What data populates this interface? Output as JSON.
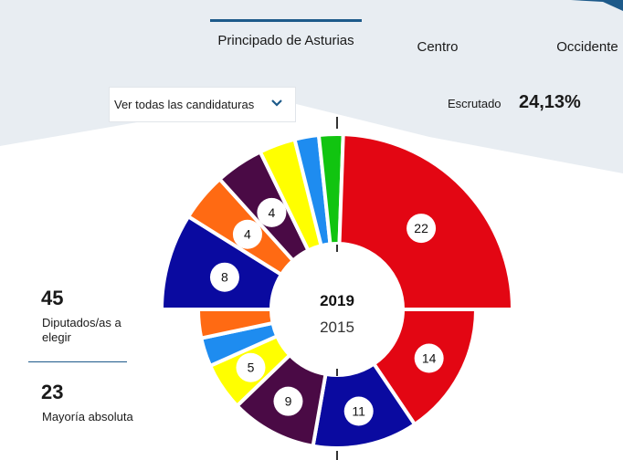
{
  "tabs": [
    {
      "label": "Principado de Asturias"
    },
    {
      "label": "Centro"
    },
    {
      "label": "Occidente"
    }
  ],
  "dropdown": {
    "selected": "Ver todas las candidaturas"
  },
  "scrutiny": {
    "label": "Escrutado",
    "value": "24,13%"
  },
  "stats": {
    "seats": {
      "number": "45",
      "label": "Diputados/as a elegir"
    },
    "majority": {
      "number": "23",
      "label": "Mayoría absoluta"
    }
  },
  "colors": {
    "background_shape": "#e8edf2",
    "accent": "#1d5a8a",
    "red": "#e30613",
    "blue": "#0a0aa0",
    "orange": "#ff6a13",
    "purple": "#4a0a45",
    "yellow": "#ffff00",
    "light_blue": "#1e8cf0",
    "green": "#11c410"
  },
  "chart_data": {
    "type": "pie",
    "total_seats": 45,
    "center_labels": [
      "2019",
      "2015"
    ],
    "series": [
      {
        "name": "2019",
        "slices": [
          {
            "value": 8,
            "color": "#0a0aa0",
            "label": "8"
          },
          {
            "value": 4,
            "color": "#ff6a13",
            "label": "4"
          },
          {
            "value": 4,
            "color": "#4a0a45",
            "label": "4"
          },
          {
            "value": 3,
            "color": "#ffff00",
            "label": ""
          },
          {
            "value": 2,
            "color": "#1e8cf0",
            "label": ""
          },
          {
            "value": 2,
            "color": "#11c410",
            "label": ""
          },
          {
            "value": 22,
            "color": "#e30613",
            "label": "22"
          }
        ]
      },
      {
        "name": "2015",
        "slices": [
          {
            "value": 14,
            "color": "#e30613",
            "label": "14"
          },
          {
            "value": 11,
            "color": "#0a0aa0",
            "label": "11"
          },
          {
            "value": 9,
            "color": "#4a0a45",
            "label": "9"
          },
          {
            "value": 5,
            "color": "#ffff00",
            "label": "5"
          },
          {
            "value": 3,
            "color": "#1e8cf0",
            "label": ""
          },
          {
            "value": 3,
            "color": "#ff6a13",
            "label": ""
          }
        ]
      }
    ]
  }
}
